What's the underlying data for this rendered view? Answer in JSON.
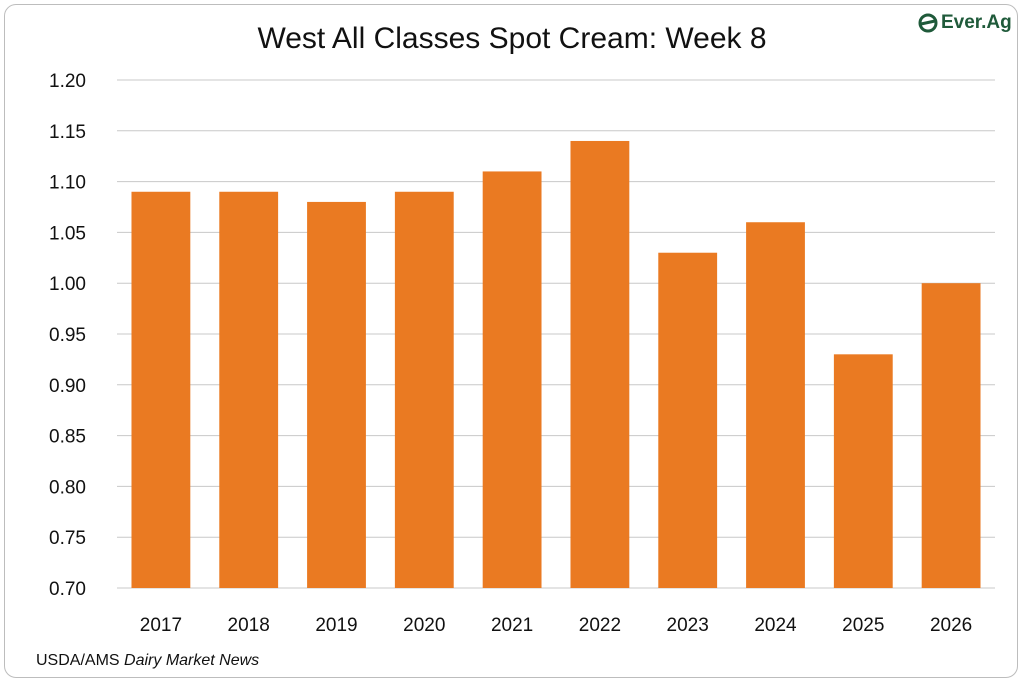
{
  "logo": {
    "text": "Ever.Ag",
    "icon": "everag-leaf-icon",
    "color": "#1f5a3a"
  },
  "source": {
    "org": "USDA/AMS",
    "publication": "Dairy Market News"
  },
  "chart_data": {
    "type": "bar",
    "title": "West All Classes Spot Cream: Week 8",
    "xlabel": "",
    "ylabel": "",
    "categories": [
      "2017",
      "2018",
      "2019",
      "2020",
      "2021",
      "2022",
      "2023",
      "2024",
      "2025",
      "2026"
    ],
    "values": [
      1.09,
      1.09,
      1.08,
      1.09,
      1.11,
      1.14,
      1.03,
      1.06,
      0.93,
      1.0
    ],
    "ylim": [
      0.7,
      1.2
    ],
    "yticks": [
      "0.70",
      "0.75",
      "0.80",
      "0.85",
      "0.90",
      "0.95",
      "1.00",
      "1.05",
      "1.10",
      "1.15",
      "1.20"
    ],
    "grid": true,
    "legend": "none",
    "bar_color": "#ea7a22",
    "grid_color": "#c8c8c8"
  }
}
